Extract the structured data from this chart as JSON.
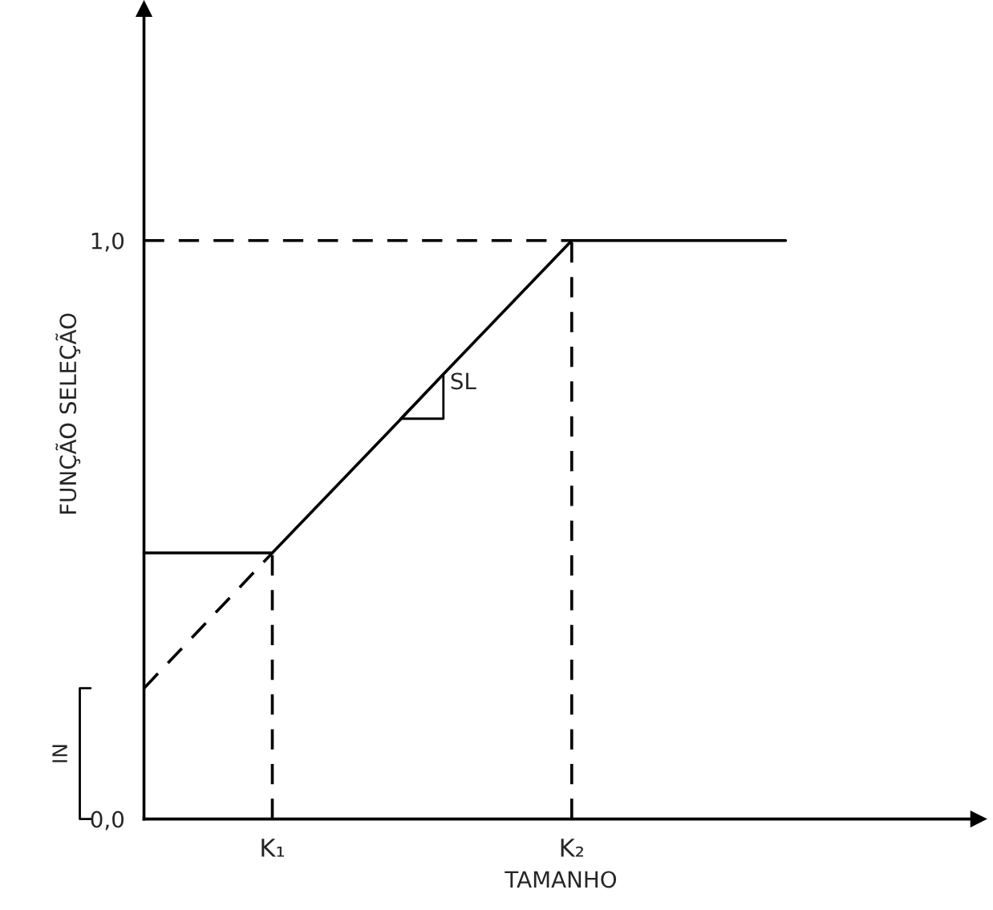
{
  "chart_data": {
    "type": "line",
    "xlabel": "TAMANHO",
    "ylabel": "FUNÇÃO SELEÇÃO",
    "categories": [
      null,
      null,
      null,
      "K₁",
      null,
      null,
      null,
      null,
      null,
      null,
      "K₂",
      null,
      null,
      null,
      null,
      null
    ],
    "ylim": [
      0,
      1.4
    ],
    "yticks": [
      {
        "value": 0,
        "label": "0,0"
      },
      {
        "value": 1,
        "label": "1,0"
      }
    ],
    "series": [
      {
        "color": "#000000",
        "line_style": "solid",
        "values": [
          0.46,
          0.46,
          0.46,
          0.46,
          0.537,
          0.614,
          0.691,
          0.769,
          0.846,
          0.923,
          1.0,
          1.0,
          1.0,
          1.0,
          1.0,
          1.0
        ]
      },
      {
        "color": "#000000",
        "line_style": "dashed",
        "values": [
          0.226,
          0.304,
          0.382,
          0.46,
          null,
          null,
          null,
          null,
          null,
          null,
          null,
          null,
          null,
          null,
          null,
          null
        ]
      }
    ],
    "ref_lines": [
      {
        "axis": "y",
        "value": 1.0,
        "line_style": "dashed",
        "color": "#000000"
      },
      {
        "axis": "x",
        "value": "K₁",
        "line_style": "dashed",
        "color": "#000000"
      },
      {
        "axis": "x",
        "value": "K₂",
        "line_style": "dashed",
        "color": "#000000"
      }
    ],
    "annotations": [
      "SL",
      "IN"
    ]
  }
}
